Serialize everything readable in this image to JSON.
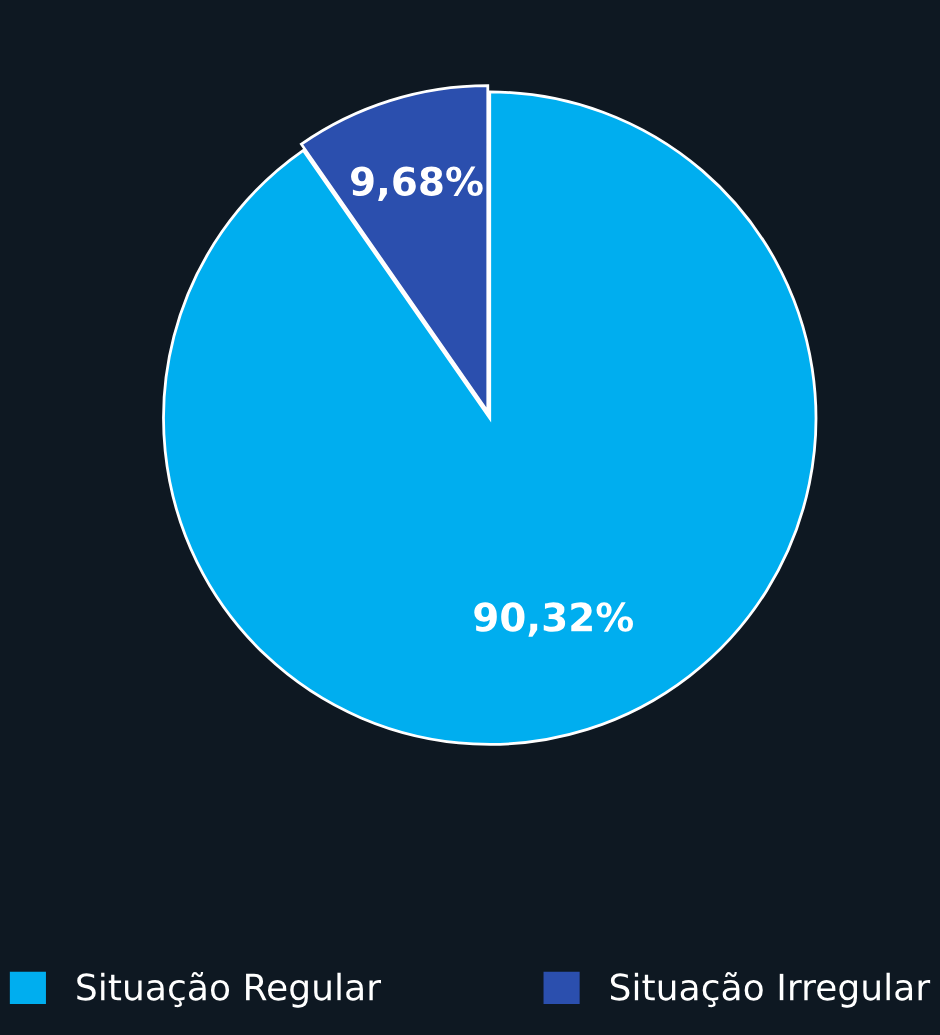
{
  "chart_data": {
    "type": "pie",
    "categories": [
      "Situação Regular",
      "Situação Irregular"
    ],
    "values": [
      90.32,
      9.68
    ],
    "colors": [
      "#00aeef",
      "#2b4fae"
    ],
    "value_labels": [
      "90,32%",
      "9,68%"
    ],
    "legend": "bottom"
  }
}
